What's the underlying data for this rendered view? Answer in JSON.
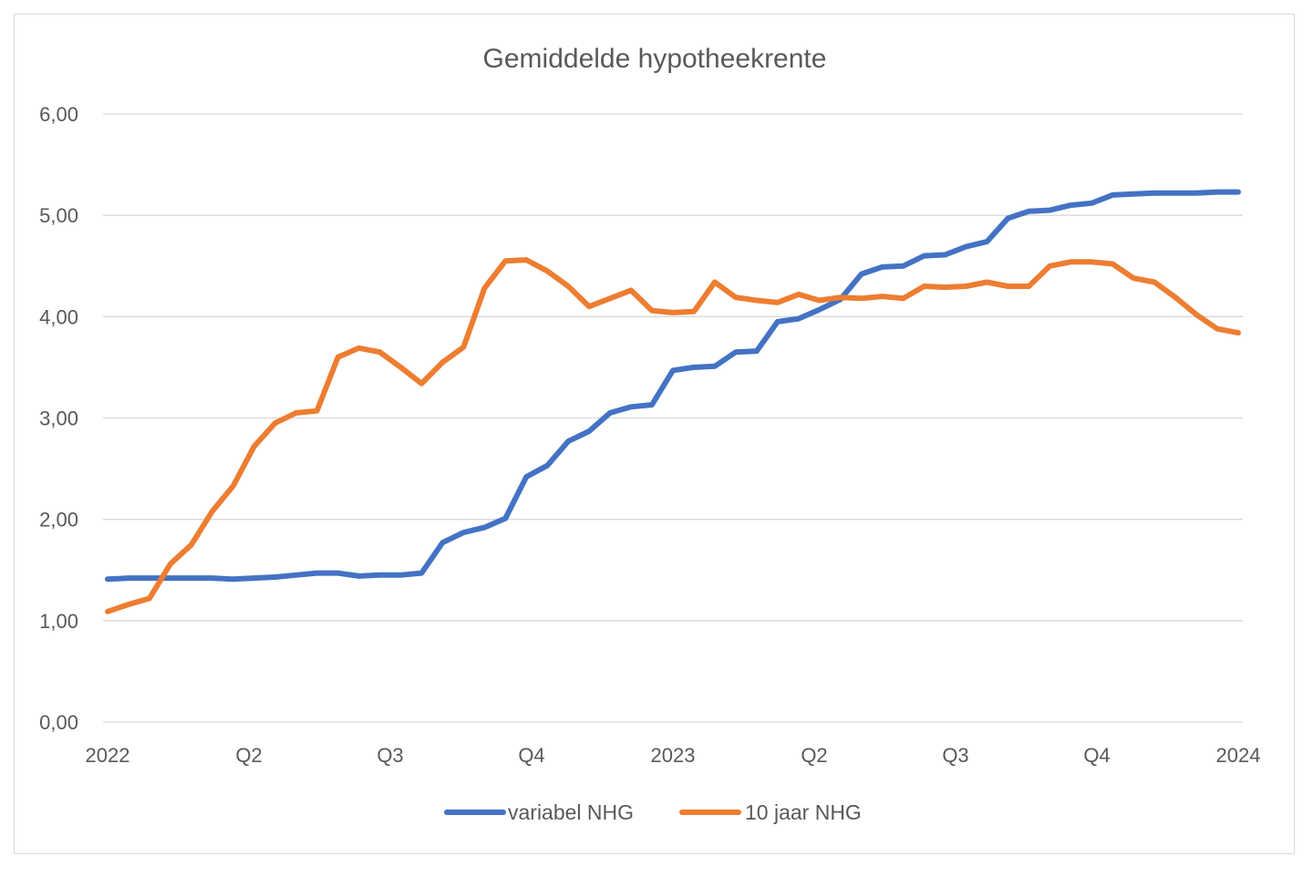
{
  "chart_data": {
    "type": "line",
    "title": "Gemiddelde hypotheekrente",
    "xlabel": "",
    "ylabel": "",
    "ylim": [
      0,
      6
    ],
    "yticks": [
      "0,00",
      "1,00",
      "2,00",
      "3,00",
      "4,00",
      "5,00",
      "6,00"
    ],
    "xticks": [
      "2022",
      "Q2",
      "Q3",
      "Q4",
      "2023",
      "Q2",
      "Q3",
      "Q4",
      "2024"
    ],
    "grid": true,
    "legend_position": "bottom",
    "x_index_range": [
      0,
      108
    ],
    "series": [
      {
        "name": "variabel NHG",
        "color": "#4472c4",
        "x": [
          0,
          2,
          4,
          6,
          8,
          10,
          12,
          14,
          16,
          18,
          20,
          22,
          24,
          26,
          28,
          30,
          32,
          34,
          36,
          38,
          40,
          42,
          44,
          46,
          48,
          50,
          52,
          54,
          56,
          58,
          60,
          62,
          64,
          66,
          68,
          70,
          72,
          74,
          76,
          78,
          80,
          82,
          84,
          86,
          88,
          90,
          92,
          94,
          96,
          98,
          100,
          102,
          104,
          106,
          108
        ],
        "values": [
          1.41,
          1.42,
          1.42,
          1.42,
          1.42,
          1.42,
          1.41,
          1.42,
          1.43,
          1.45,
          1.47,
          1.47,
          1.44,
          1.45,
          1.45,
          1.47,
          1.77,
          1.87,
          1.92,
          2.01,
          2.42,
          2.53,
          2.77,
          2.87,
          3.05,
          3.11,
          3.13,
          3.47,
          3.5,
          3.51,
          3.65,
          3.66,
          3.95,
          3.98,
          4.07,
          4.17,
          4.42,
          4.49,
          4.5,
          4.6,
          4.61,
          4.69,
          4.74,
          4.97,
          5.04,
          5.05,
          5.1,
          5.12,
          5.2,
          5.21,
          5.22,
          5.22,
          5.22,
          5.23,
          5.23
        ]
      },
      {
        "name": "10 jaar NHG",
        "color": "#ed7d31",
        "x": [
          0,
          2,
          4,
          6,
          8,
          10,
          12,
          14,
          16,
          18,
          20,
          22,
          24,
          26,
          28,
          30,
          32,
          34,
          36,
          38,
          40,
          42,
          44,
          46,
          48,
          50,
          52,
          54,
          56,
          58,
          60,
          62,
          64,
          66,
          68,
          70,
          72,
          74,
          76,
          78,
          80,
          82,
          84,
          86,
          88,
          90,
          92,
          94,
          96,
          98,
          100,
          102,
          104,
          106,
          108
        ],
        "values": [
          1.09,
          1.16,
          1.22,
          1.56,
          1.75,
          2.08,
          2.33,
          2.72,
          2.95,
          3.05,
          3.07,
          3.6,
          3.69,
          3.65,
          3.5,
          3.34,
          3.55,
          3.7,
          4.28,
          4.55,
          4.56,
          4.45,
          4.3,
          4.1,
          4.18,
          4.26,
          4.06,
          4.04,
          4.05,
          4.34,
          4.19,
          4.16,
          4.14,
          4.22,
          4.16,
          4.19,
          4.18,
          4.2,
          4.18,
          4.3,
          4.29,
          4.3,
          4.34,
          4.3,
          4.3,
          4.5,
          4.54,
          4.54,
          4.52,
          4.38,
          4.34,
          4.19,
          4.02,
          3.88,
          3.84
        ]
      }
    ]
  }
}
